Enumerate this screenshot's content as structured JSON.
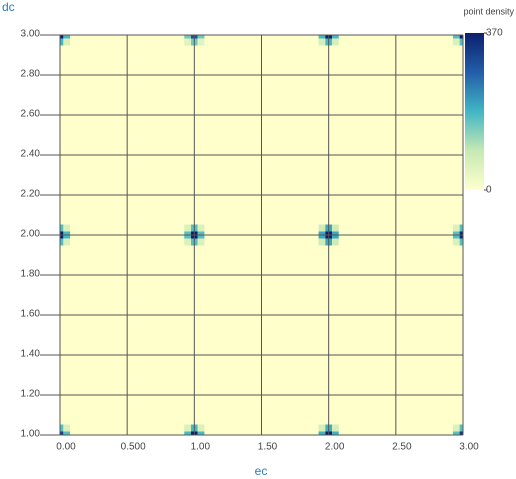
{
  "chart_data": {
    "type": "heatmap",
    "xlabel": "ec",
    "ylabel": "dc",
    "colorbar_title": "point density",
    "xlim": [
      0,
      3
    ],
    "ylim": [
      1,
      3
    ],
    "xticks": [
      {
        "value": 0,
        "label": "0.00"
      },
      {
        "value": 0.5,
        "label": "0.500"
      },
      {
        "value": 1,
        "label": "1.00"
      },
      {
        "value": 1.5,
        "label": "1.50"
      },
      {
        "value": 2,
        "label": "2.00"
      },
      {
        "value": 2.5,
        "label": "2.50"
      },
      {
        "value": 3,
        "label": "3.00"
      }
    ],
    "yticks": [
      {
        "value": 1,
        "label": "1.00"
      },
      {
        "value": 1.2,
        "label": "1.20"
      },
      {
        "value": 1.4,
        "label": "1.40"
      },
      {
        "value": 1.6,
        "label": "1.60"
      },
      {
        "value": 1.8,
        "label": "1.80"
      },
      {
        "value": 2,
        "label": "2.00"
      },
      {
        "value": 2.2,
        "label": "2.20"
      },
      {
        "value": 2.4,
        "label": "2.40"
      },
      {
        "value": 2.6,
        "label": "2.60"
      },
      {
        "value": 2.8,
        "label": "2.80"
      },
      {
        "value": 3,
        "label": "3.00"
      }
    ],
    "grid": true,
    "cell_size": [
      0.05,
      0.035
    ],
    "colorscale": [
      "#ffffcc",
      "#c7e9b4",
      "#41b6c4",
      "#225ea8",
      "#0c1f6e"
    ],
    "clim": [
      0,
      370
    ],
    "cticks": [
      0,
      370
    ],
    "x": [
      0,
      0.05,
      0,
      0.05,
      0,
      0.05,
      0,
      0.05,
      0,
      0.05,
      0,
      0.05,
      0,
      0.05,
      0.95,
      1,
      1.05,
      0.95,
      1,
      1.05,
      0.95,
      1,
      1.05,
      0.95,
      1,
      1.05,
      0.95,
      1,
      1.05,
      0.95,
      1,
      1.05,
      0.95,
      1,
      1.05,
      1.95,
      2,
      2.05,
      1.95,
      2,
      2.05,
      1.95,
      2,
      2.05,
      1.95,
      2,
      2.05,
      1.95,
      2,
      2.05,
      1.95,
      2,
      2.05,
      1.95,
      2,
      2.05,
      2.95,
      3,
      2.95,
      3,
      2.95,
      3,
      2.95,
      3,
      2.95,
      3,
      2.95,
      3,
      2.95,
      3
    ],
    "y": [
      1,
      1,
      1.035,
      1.035,
      1.965,
      1.965,
      2,
      2,
      2.035,
      2.035,
      2.965,
      2.965,
      3,
      3,
      1,
      1,
      1,
      1.035,
      1.035,
      1.035,
      1.965,
      1.965,
      1.965,
      2,
      2,
      2,
      2.035,
      2.035,
      2.035,
      2.965,
      2.965,
      2.965,
      3,
      3,
      3,
      1,
      1,
      1,
      1.035,
      1.035,
      1.035,
      1.965,
      1.965,
      1.965,
      2,
      2,
      2,
      2.035,
      2.035,
      2.035,
      2.965,
      2.965,
      2.965,
      3,
      3,
      3,
      1,
      1,
      1.035,
      1.035,
      1.965,
      1.965,
      2,
      2,
      2.035,
      2.035,
      2.965,
      2.965,
      3,
      3
    ],
    "values": [
      320,
      170,
      170,
      60,
      170,
      60,
      370,
      180,
      170,
      60,
      180,
      60,
      370,
      180,
      180,
      370,
      180,
      60,
      180,
      60,
      60,
      170,
      60,
      170,
      370,
      170,
      60,
      170,
      60,
      50,
      150,
      50,
      150,
      300,
      150,
      190,
      370,
      190,
      70,
      190,
      70,
      80,
      200,
      80,
      200,
      370,
      200,
      80,
      200,
      80,
      70,
      180,
      70,
      180,
      370,
      180,
      170,
      340,
      60,
      170,
      60,
      170,
      170,
      360,
      60,
      170,
      60,
      170,
      170,
      370
    ]
  }
}
